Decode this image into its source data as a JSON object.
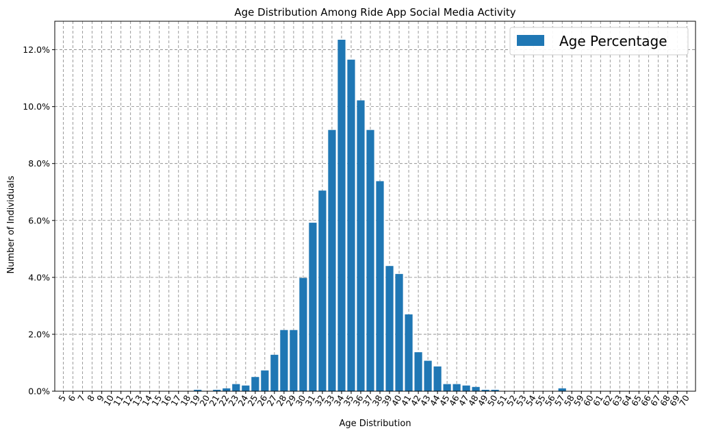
{
  "chart_data": {
    "type": "bar",
    "title": "Age Distribution Among Ride App Social Media Activity",
    "xlabel": "Age Distribution",
    "ylabel": "Number of Individuals",
    "legend": {
      "label": "Age Percentage",
      "placement": "top-right"
    },
    "bar_color": "#1f77b4",
    "grid": true,
    "grid_style": "dashed",
    "grid_color": "#808080",
    "xlim": [
      5,
      70
    ],
    "ylim": [
      0,
      13.0
    ],
    "y_ticks": [
      0,
      2,
      4,
      6,
      8,
      10,
      12
    ],
    "y_tick_labels": [
      "0.0%",
      "2.0%",
      "4.0%",
      "6.0%",
      "8.0%",
      "10.0%",
      "12.0%"
    ],
    "x_tick_rotation_deg": -60,
    "categories": [
      5,
      6,
      7,
      8,
      9,
      10,
      11,
      12,
      13,
      14,
      15,
      16,
      17,
      18,
      19,
      20,
      21,
      22,
      23,
      24,
      25,
      26,
      27,
      28,
      29,
      30,
      31,
      32,
      33,
      34,
      35,
      36,
      37,
      38,
      39,
      40,
      41,
      42,
      43,
      44,
      45,
      46,
      47,
      48,
      49,
      50,
      51,
      52,
      53,
      54,
      55,
      56,
      57,
      58,
      59,
      60,
      61,
      62,
      63,
      64,
      65,
      66,
      67,
      68,
      69,
      70
    ],
    "values": [
      0,
      0,
      0,
      0,
      0,
      0,
      0,
      0,
      0,
      0,
      0,
      0,
      0,
      0,
      0.05,
      0,
      0.05,
      0.1,
      0.25,
      0.2,
      0.5,
      0.73,
      1.28,
      2.15,
      2.15,
      3.98,
      5.92,
      7.05,
      9.18,
      12.35,
      11.65,
      10.22,
      9.18,
      7.38,
      4.4,
      4.12,
      2.7,
      1.37,
      1.07,
      0.87,
      0.25,
      0.25,
      0.2,
      0.15,
      0.05,
      0.05,
      0,
      0,
      0,
      0,
      0,
      0,
      0.1,
      0,
      0,
      0,
      0,
      0,
      0,
      0,
      0,
      0,
      0,
      0,
      0,
      0
    ]
  }
}
